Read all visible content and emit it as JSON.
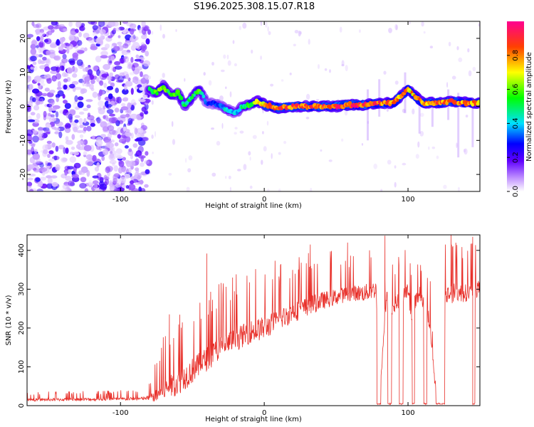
{
  "title": "S196.2025.308.15.07.R18",
  "chart_data": [
    {
      "type": "heatmap",
      "name": "spectrogram",
      "xlabel": "Height of straight line (km)",
      "ylabel": "Frequency (Hz)",
      "xlim": [
        -165,
        150
      ],
      "ylim": [
        -25,
        25
      ],
      "xticks": [
        -100,
        0,
        100
      ],
      "yticks": [
        -20,
        -10,
        0,
        10,
        20
      ],
      "colorbar": {
        "label": "Normalized spectral amplitude",
        "range": [
          0,
          1
        ],
        "ticks": [
          "0.0",
          "0.2",
          "0.4",
          "0.6",
          "0.8"
        ],
        "tick_values": [
          0.0,
          0.2,
          0.4,
          0.6,
          0.8
        ],
        "colors": [
          "#ffffff",
          "#8000ff",
          "#0000ff",
          "#00ffff",
          "#00ff00",
          "#ffff00",
          "#ff0000",
          "#ff00aa"
        ]
      },
      "noise_region_x": [
        -165,
        -80
      ],
      "trace": {
        "x": [
          -80,
          -75,
          -70,
          -65,
          -60,
          -55,
          -50,
          -45,
          -40,
          -35,
          -30,
          -25,
          -20,
          -15,
          -10,
          -5,
          0,
          10,
          20,
          30,
          40,
          50,
          60,
          70,
          80,
          90,
          100,
          110,
          120,
          130,
          140,
          150
        ],
        "f": [
          5,
          4,
          6,
          3,
          4,
          0,
          3,
          5,
          1,
          1,
          0,
          -1,
          -2,
          0,
          0.5,
          1.5,
          0.5,
          -0.5,
          0,
          0,
          0,
          0,
          0.5,
          0.5,
          1,
          1,
          5,
          1,
          1,
          1.5,
          1,
          1
        ],
        "amp": [
          0.5,
          0.6,
          0.7,
          0.55,
          0.6,
          0.5,
          0.55,
          0.6,
          0.3,
          0.3,
          0.35,
          0.5,
          0.4,
          0.5,
          0.6,
          0.7,
          0.85,
          0.9,
          0.9,
          0.9,
          0.92,
          0.95,
          0.95,
          0.95,
          0.9,
          0.9,
          0.8,
          0.85,
          0.9,
          0.9,
          0.85,
          0.85
        ]
      }
    },
    {
      "type": "line",
      "name": "snr",
      "xlabel": "Height of straight line (km)",
      "ylabel": "SNR (10 * v/v)",
      "xlim": [
        -165,
        150
      ],
      "ylim": [
        0,
        440
      ],
      "xticks": [
        -100,
        0,
        100
      ],
      "yticks": [
        0,
        100,
        200,
        300,
        400
      ],
      "color": "#e8302a",
      "envelope": {
        "x": [
          -165,
          -100,
          -85,
          -80,
          -75,
          -70,
          -60,
          -50,
          -40,
          -30,
          -20,
          -10,
          0,
          20,
          40,
          60,
          70,
          78,
          80,
          85,
          86,
          89,
          100,
          102,
          108,
          115,
          120,
          124,
          125,
          130,
          140,
          150
        ],
        "base": [
          15,
          17,
          18,
          20,
          25,
          40,
          60,
          90,
          120,
          150,
          170,
          190,
          200,
          240,
          270,
          290,
          290,
          300,
          0,
          290,
          260,
          250,
          300,
          240,
          290,
          220,
          0,
          0,
          280,
          290,
          290,
          300
        ],
        "peak": [
          35,
          40,
          40,
          60,
          120,
          180,
          250,
          280,
          300,
          330,
          340,
          360,
          370,
          390,
          400,
          400,
          420,
          430,
          0,
          420,
          400,
          380,
          410,
          380,
          400,
          360,
          0,
          0,
          430,
          440,
          420,
          430
        ]
      },
      "spikes": [
        {
          "x": -66,
          "y": 235
        },
        {
          "x": -40,
          "y": 392
        },
        {
          "x": -22,
          "y": 330
        },
        {
          "x": 32,
          "y": 415
        },
        {
          "x": 58,
          "y": 420
        },
        {
          "x": 84,
          "y": 438
        },
        {
          "x": 130,
          "y": 440
        },
        {
          "x": 145,
          "y": 435
        }
      ]
    }
  ]
}
